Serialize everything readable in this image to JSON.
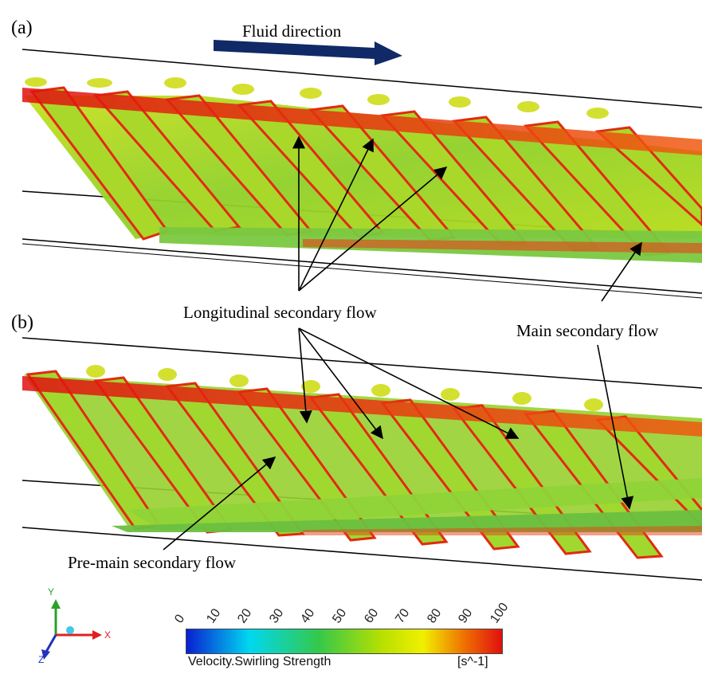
{
  "panels": [
    {
      "label": "(a)"
    },
    {
      "label": "(b)"
    }
  ],
  "flow_arrow_label": "Fluid direction",
  "annotations": {
    "longitudinal": "Longitudinal secondary flow",
    "main": "Main secondary flow",
    "pre_main": "Pre-main secondary flow"
  },
  "axes_triad": {
    "x": "X",
    "y": "Y",
    "z": "Z"
  },
  "colorbar": {
    "title": "Velocity.Swirling Strength",
    "unit": "[s^-1]",
    "ticks": [
      "0",
      "10",
      "20",
      "30",
      "40",
      "50",
      "60",
      "70",
      "80",
      "90",
      "100"
    ],
    "colors": [
      "#0a1fd1",
      "#00d8f0",
      "#35c84a",
      "#b8e000",
      "#f0f000",
      "#f07000",
      "#e01010"
    ]
  }
}
